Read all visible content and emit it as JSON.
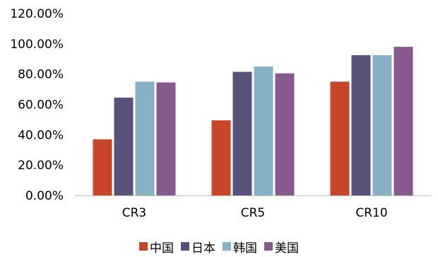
{
  "chart_data": {
    "type": "bar",
    "categories": [
      "CR3",
      "CR5",
      "CR10"
    ],
    "series": [
      {
        "name": "中国",
        "color": "#c8442a",
        "values": [
          37,
          49.5,
          75
        ]
      },
      {
        "name": "日本",
        "color": "#575279",
        "values": [
          64.5,
          81.5,
          92.5
        ]
      },
      {
        "name": "韩国",
        "color": "#86b1c6",
        "values": [
          75,
          85,
          92.5
        ]
      },
      {
        "name": "美国",
        "color": "#875a8e",
        "values": [
          74.5,
          80.5,
          98
        ]
      }
    ],
    "y_ticks": [
      "0.00%",
      "20.00%",
      "40.00%",
      "60.00%",
      "80.00%",
      "100.00%",
      "120.00%"
    ],
    "ylim": [
      0,
      120
    ],
    "grid": false,
    "legend_position": "bottom"
  }
}
